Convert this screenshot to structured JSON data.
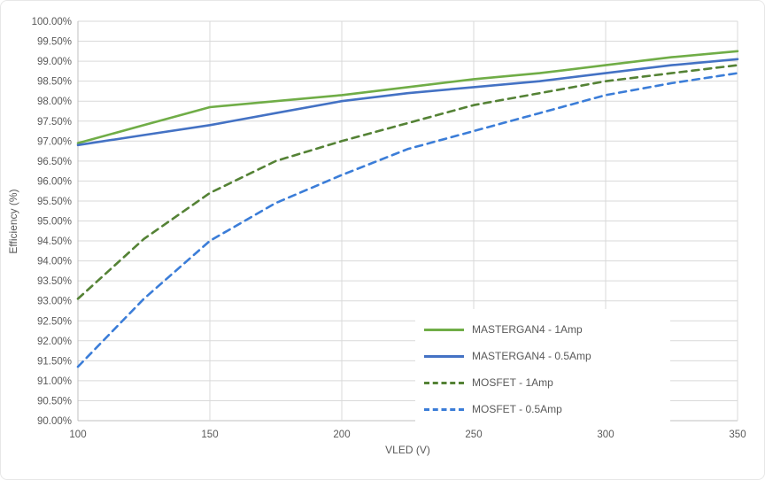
{
  "chart_data": {
    "type": "line",
    "title": "",
    "xlabel": "VLED (V)",
    "ylabel": "Efficiency (%)",
    "xlim": [
      100,
      350
    ],
    "ylim": [
      90,
      100
    ],
    "xticks": [
      100,
      150,
      200,
      250,
      300,
      350
    ],
    "ytick_step": 0.5,
    "ytick_format": "percent-2dp",
    "grid": true,
    "legend_position": "inside-lower-right",
    "x": [
      100,
      125,
      150,
      175,
      200,
      225,
      250,
      275,
      300,
      325,
      350
    ],
    "series": [
      {
        "name": "MASTERGAN4 - 1Amp",
        "color": "#70ad47",
        "dash": "solid",
        "values": [
          96.95,
          97.4,
          97.85,
          98.0,
          98.15,
          98.35,
          98.55,
          98.7,
          98.9,
          99.1,
          99.25
        ]
      },
      {
        "name": "MASTERGAN4 - 0.5Amp",
        "color": "#4472c4",
        "dash": "solid",
        "values": [
          96.9,
          97.15,
          97.4,
          97.7,
          98.0,
          98.2,
          98.35,
          98.5,
          98.7,
          98.9,
          99.05
        ]
      },
      {
        "name": "MOSFET - 1Amp",
        "color": "#548235",
        "dash": "dashed",
        "values": [
          93.05,
          94.55,
          95.7,
          96.5,
          97.0,
          97.45,
          97.9,
          98.2,
          98.5,
          98.7,
          98.9
        ]
      },
      {
        "name": "MOSFET - 0.5Amp",
        "color": "#3b7dd8",
        "dash": "dashed",
        "values": [
          91.35,
          93.05,
          94.5,
          95.45,
          96.15,
          96.8,
          97.25,
          97.7,
          98.15,
          98.45,
          98.7
        ]
      }
    ],
    "colors": {
      "gridline": "#d9d9d9",
      "axis_line": "#bfbfbf",
      "tick_label": "#595959"
    }
  }
}
